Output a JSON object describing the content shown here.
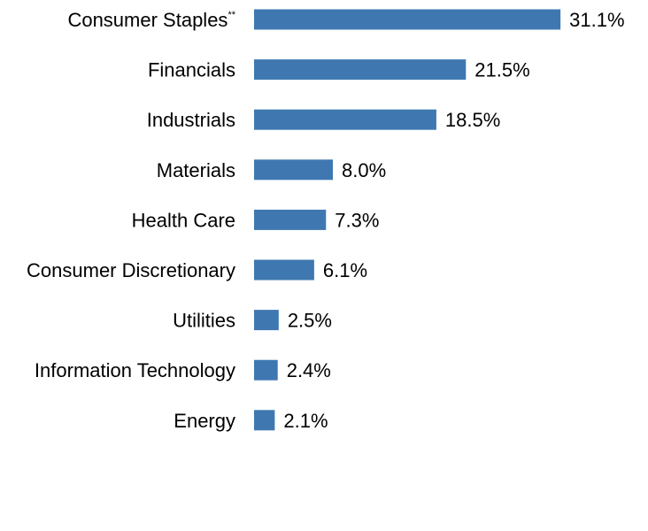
{
  "chart_data": {
    "type": "bar",
    "orientation": "horizontal",
    "categories": [
      "Consumer Staples",
      "Financials",
      "Industrials",
      "Materials",
      "Health Care",
      "Consumer Discretionary",
      "Utilities",
      "Information Technology",
      "Energy"
    ],
    "category_superscripts": [
      "**",
      "",
      "",
      "",
      "",
      "",
      "",
      "",
      ""
    ],
    "values": [
      31.1,
      21.5,
      18.5,
      8.0,
      7.3,
      6.1,
      2.5,
      2.4,
      2.1
    ],
    "value_labels": [
      "31.1%",
      "21.5%",
      "18.5%",
      "8.0%",
      "7.3%",
      "6.1%",
      "2.5%",
      "2.4%",
      "2.1%"
    ],
    "unit": "%",
    "bar_color": "#3f78b0",
    "grid": false,
    "legend": "none",
    "title": "",
    "xlabel": "",
    "ylabel": ""
  }
}
